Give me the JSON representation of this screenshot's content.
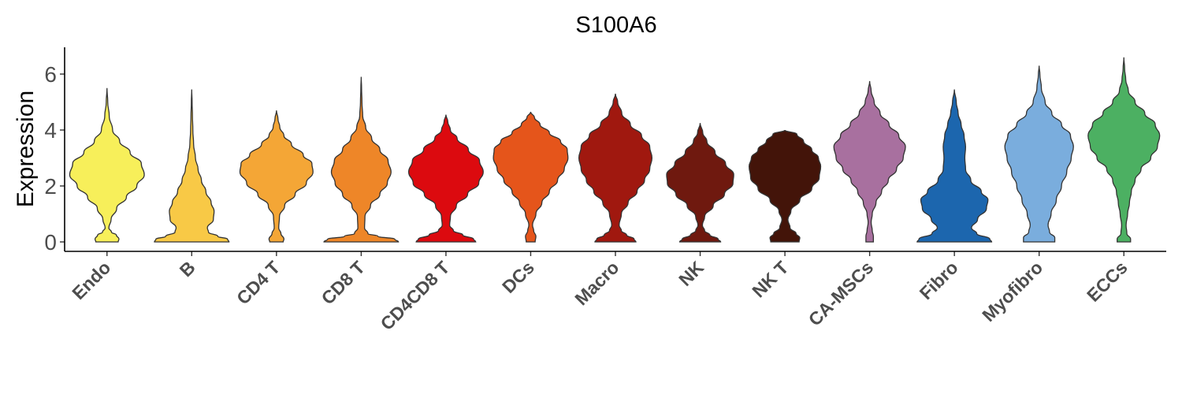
{
  "chart_data": {
    "type": "violin",
    "title": "S100A6",
    "xlabel": "",
    "ylabel": "Expression",
    "ylim": [
      -0.3,
      6.9
    ],
    "yticks": [
      0,
      2,
      4,
      6
    ],
    "grid": false,
    "legend": "none",
    "categories": [
      {
        "name": "Endo",
        "color": "#F7EF5A",
        "max": 5.5,
        "shape": [
          [
            0,
            0.3
          ],
          [
            0.1,
            0.32
          ],
          [
            0.25,
            0.25
          ],
          [
            0.35,
            0.12
          ],
          [
            0.5,
            0.05
          ],
          [
            0.8,
            0.11
          ],
          [
            1.2,
            0.26
          ],
          [
            1.6,
            0.52
          ],
          [
            2.0,
            0.8
          ],
          [
            2.4,
            1.0
          ],
          [
            2.8,
            0.92
          ],
          [
            3.2,
            0.62
          ],
          [
            3.6,
            0.34
          ],
          [
            4.0,
            0.15
          ],
          [
            4.5,
            0.06
          ],
          [
            5.0,
            0.02
          ],
          [
            5.5,
            0.0
          ]
        ]
      },
      {
        "name": "B",
        "color": "#F8C946",
        "max": 5.45,
        "shape": [
          [
            0,
            1.0
          ],
          [
            0.1,
            0.96
          ],
          [
            0.2,
            0.7
          ],
          [
            0.35,
            0.45
          ],
          [
            0.5,
            0.42
          ],
          [
            0.8,
            0.58
          ],
          [
            1.1,
            0.6
          ],
          [
            1.4,
            0.52
          ],
          [
            1.8,
            0.38
          ],
          [
            2.2,
            0.26
          ],
          [
            2.6,
            0.17
          ],
          [
            3.0,
            0.1
          ],
          [
            3.5,
            0.05
          ],
          [
            4.0,
            0.03
          ],
          [
            4.5,
            0.02
          ],
          [
            5.0,
            0.01
          ],
          [
            5.45,
            0.0
          ]
        ]
      },
      {
        "name": "CD4 T",
        "color": "#F4A636",
        "max": 4.7,
        "shape": [
          [
            0,
            0.18
          ],
          [
            0.1,
            0.2
          ],
          [
            0.3,
            0.12
          ],
          [
            0.5,
            0.06
          ],
          [
            0.9,
            0.08
          ],
          [
            1.3,
            0.22
          ],
          [
            1.7,
            0.5
          ],
          [
            2.1,
            0.8
          ],
          [
            2.5,
            0.98
          ],
          [
            2.8,
            0.95
          ],
          [
            3.1,
            0.72
          ],
          [
            3.5,
            0.4
          ],
          [
            3.8,
            0.2
          ],
          [
            4.1,
            0.09
          ],
          [
            4.4,
            0.04
          ],
          [
            4.7,
            0.0
          ]
        ]
      },
      {
        "name": "CD8 T",
        "color": "#EE8628",
        "max": 5.9,
        "shape": [
          [
            0,
            1.0
          ],
          [
            0.1,
            0.9
          ],
          [
            0.2,
            0.45
          ],
          [
            0.3,
            0.18
          ],
          [
            0.5,
            0.09
          ],
          [
            0.9,
            0.1
          ],
          [
            1.3,
            0.25
          ],
          [
            1.7,
            0.5
          ],
          [
            2.1,
            0.7
          ],
          [
            2.5,
            0.8
          ],
          [
            2.9,
            0.72
          ],
          [
            3.3,
            0.5
          ],
          [
            3.7,
            0.28
          ],
          [
            4.1,
            0.12
          ],
          [
            4.5,
            0.04
          ],
          [
            5.0,
            0.02
          ],
          [
            5.5,
            0.01
          ],
          [
            5.9,
            0.0
          ]
        ]
      },
      {
        "name": "CD4CD8 T",
        "color": "#DC0A0F",
        "max": 4.55,
        "shape": [
          [
            0,
            0.8
          ],
          [
            0.1,
            0.74
          ],
          [
            0.25,
            0.45
          ],
          [
            0.4,
            0.2
          ],
          [
            0.6,
            0.1
          ],
          [
            0.9,
            0.12
          ],
          [
            1.3,
            0.28
          ],
          [
            1.7,
            0.58
          ],
          [
            2.1,
            0.88
          ],
          [
            2.5,
            1.0
          ],
          [
            2.9,
            0.9
          ],
          [
            3.3,
            0.6
          ],
          [
            3.7,
            0.3
          ],
          [
            4.0,
            0.12
          ],
          [
            4.3,
            0.05
          ],
          [
            4.55,
            0.0
          ]
        ]
      },
      {
        "name": "DCs",
        "color": "#E5551B",
        "max": 4.65,
        "shape": [
          [
            0,
            0.12
          ],
          [
            0.2,
            0.14
          ],
          [
            0.4,
            0.08
          ],
          [
            0.6,
            0.05
          ],
          [
            1.0,
            0.14
          ],
          [
            1.4,
            0.3
          ],
          [
            1.8,
            0.5
          ],
          [
            2.2,
            0.72
          ],
          [
            2.6,
            0.9
          ],
          [
            3.0,
            1.0
          ],
          [
            3.3,
            0.98
          ],
          [
            3.6,
            0.8
          ],
          [
            3.9,
            0.5
          ],
          [
            4.2,
            0.25
          ],
          [
            4.45,
            0.1
          ],
          [
            4.65,
            0.0
          ]
        ]
      },
      {
        "name": "Macro",
        "color": "#A0180F",
        "max": 5.3,
        "shape": [
          [
            0,
            0.55
          ],
          [
            0.1,
            0.5
          ],
          [
            0.25,
            0.3
          ],
          [
            0.4,
            0.16
          ],
          [
            0.6,
            0.1
          ],
          [
            1.0,
            0.16
          ],
          [
            1.4,
            0.34
          ],
          [
            1.8,
            0.58
          ],
          [
            2.2,
            0.78
          ],
          [
            2.6,
            0.92
          ],
          [
            3.0,
            0.98
          ],
          [
            3.4,
            0.92
          ],
          [
            3.8,
            0.7
          ],
          [
            4.2,
            0.4
          ],
          [
            4.6,
            0.17
          ],
          [
            5.0,
            0.06
          ],
          [
            5.3,
            0.0
          ]
        ]
      },
      {
        "name": "NK",
        "color": "#6F190F",
        "max": 4.25,
        "shape": [
          [
            0,
            0.55
          ],
          [
            0.1,
            0.48
          ],
          [
            0.25,
            0.26
          ],
          [
            0.4,
            0.12
          ],
          [
            0.6,
            0.06
          ],
          [
            0.9,
            0.12
          ],
          [
            1.3,
            0.35
          ],
          [
            1.7,
            0.65
          ],
          [
            2.1,
            0.88
          ],
          [
            2.4,
            0.9
          ],
          [
            2.8,
            0.68
          ],
          [
            3.2,
            0.4
          ],
          [
            3.6,
            0.18
          ],
          [
            3.9,
            0.07
          ],
          [
            4.25,
            0.0
          ]
        ]
      },
      {
        "name": "NK T",
        "color": "#431409",
        "max": 4.0,
        "shape": [
          [
            0,
            0.38
          ],
          [
            0.15,
            0.4
          ],
          [
            0.3,
            0.3
          ],
          [
            0.5,
            0.14
          ],
          [
            0.8,
            0.08
          ],
          [
            1.1,
            0.16
          ],
          [
            1.5,
            0.4
          ],
          [
            1.9,
            0.72
          ],
          [
            2.3,
            0.92
          ],
          [
            2.7,
            0.96
          ],
          [
            3.0,
            0.9
          ],
          [
            3.3,
            0.72
          ],
          [
            3.6,
            0.5
          ],
          [
            3.85,
            0.32
          ],
          [
            4.0,
            0.0
          ]
        ]
      },
      {
        "name": "CA-MSCs",
        "color": "#A8709F",
        "max": 5.75,
        "shape": [
          [
            0,
            0.1
          ],
          [
            0.2,
            0.1
          ],
          [
            0.4,
            0.07
          ],
          [
            0.7,
            0.04
          ],
          [
            1.0,
            0.07
          ],
          [
            1.4,
            0.17
          ],
          [
            1.8,
            0.32
          ],
          [
            2.2,
            0.5
          ],
          [
            2.6,
            0.72
          ],
          [
            3.0,
            0.9
          ],
          [
            3.4,
            0.96
          ],
          [
            3.8,
            0.78
          ],
          [
            4.2,
            0.52
          ],
          [
            4.6,
            0.28
          ],
          [
            5.0,
            0.12
          ],
          [
            5.4,
            0.04
          ],
          [
            5.75,
            0.0
          ]
        ]
      },
      {
        "name": "Fibro",
        "color": "#1C66AE",
        "max": 5.45,
        "shape": [
          [
            0,
            1.0
          ],
          [
            0.1,
            0.95
          ],
          [
            0.3,
            0.6
          ],
          [
            0.5,
            0.46
          ],
          [
            0.8,
            0.62
          ],
          [
            1.2,
            0.86
          ],
          [
            1.5,
            0.9
          ],
          [
            1.8,
            0.72
          ],
          [
            2.2,
            0.44
          ],
          [
            2.6,
            0.3
          ],
          [
            3.0,
            0.28
          ],
          [
            3.4,
            0.3
          ],
          [
            3.8,
            0.26
          ],
          [
            4.2,
            0.18
          ],
          [
            4.6,
            0.1
          ],
          [
            5.0,
            0.05
          ],
          [
            5.45,
            0.0
          ]
        ]
      },
      {
        "name": "Myofibro",
        "color": "#7AADDD",
        "max": 6.3,
        "shape": [
          [
            0,
            0.42
          ],
          [
            0.15,
            0.42
          ],
          [
            0.35,
            0.28
          ],
          [
            0.6,
            0.24
          ],
          [
            1.0,
            0.32
          ],
          [
            1.5,
            0.46
          ],
          [
            2.0,
            0.6
          ],
          [
            2.5,
            0.74
          ],
          [
            3.0,
            0.86
          ],
          [
            3.4,
            0.92
          ],
          [
            3.8,
            0.84
          ],
          [
            4.2,
            0.6
          ],
          [
            4.6,
            0.34
          ],
          [
            5.0,
            0.16
          ],
          [
            5.5,
            0.06
          ],
          [
            6.0,
            0.02
          ],
          [
            6.3,
            0.0
          ]
        ]
      },
      {
        "name": "ECCs",
        "color": "#4CB062",
        "max": 6.6,
        "shape": [
          [
            0,
            0.18
          ],
          [
            0.1,
            0.18
          ],
          [
            0.3,
            0.08
          ],
          [
            0.6,
            0.06
          ],
          [
            1.0,
            0.1
          ],
          [
            1.4,
            0.15
          ],
          [
            1.8,
            0.2
          ],
          [
            2.2,
            0.3
          ],
          [
            2.6,
            0.46
          ],
          [
            3.0,
            0.72
          ],
          [
            3.4,
            0.9
          ],
          [
            3.8,
            0.96
          ],
          [
            4.2,
            0.84
          ],
          [
            4.6,
            0.56
          ],
          [
            5.0,
            0.3
          ],
          [
            5.4,
            0.12
          ],
          [
            5.8,
            0.05
          ],
          [
            6.2,
            0.02
          ],
          [
            6.6,
            0.0
          ]
        ]
      }
    ]
  }
}
